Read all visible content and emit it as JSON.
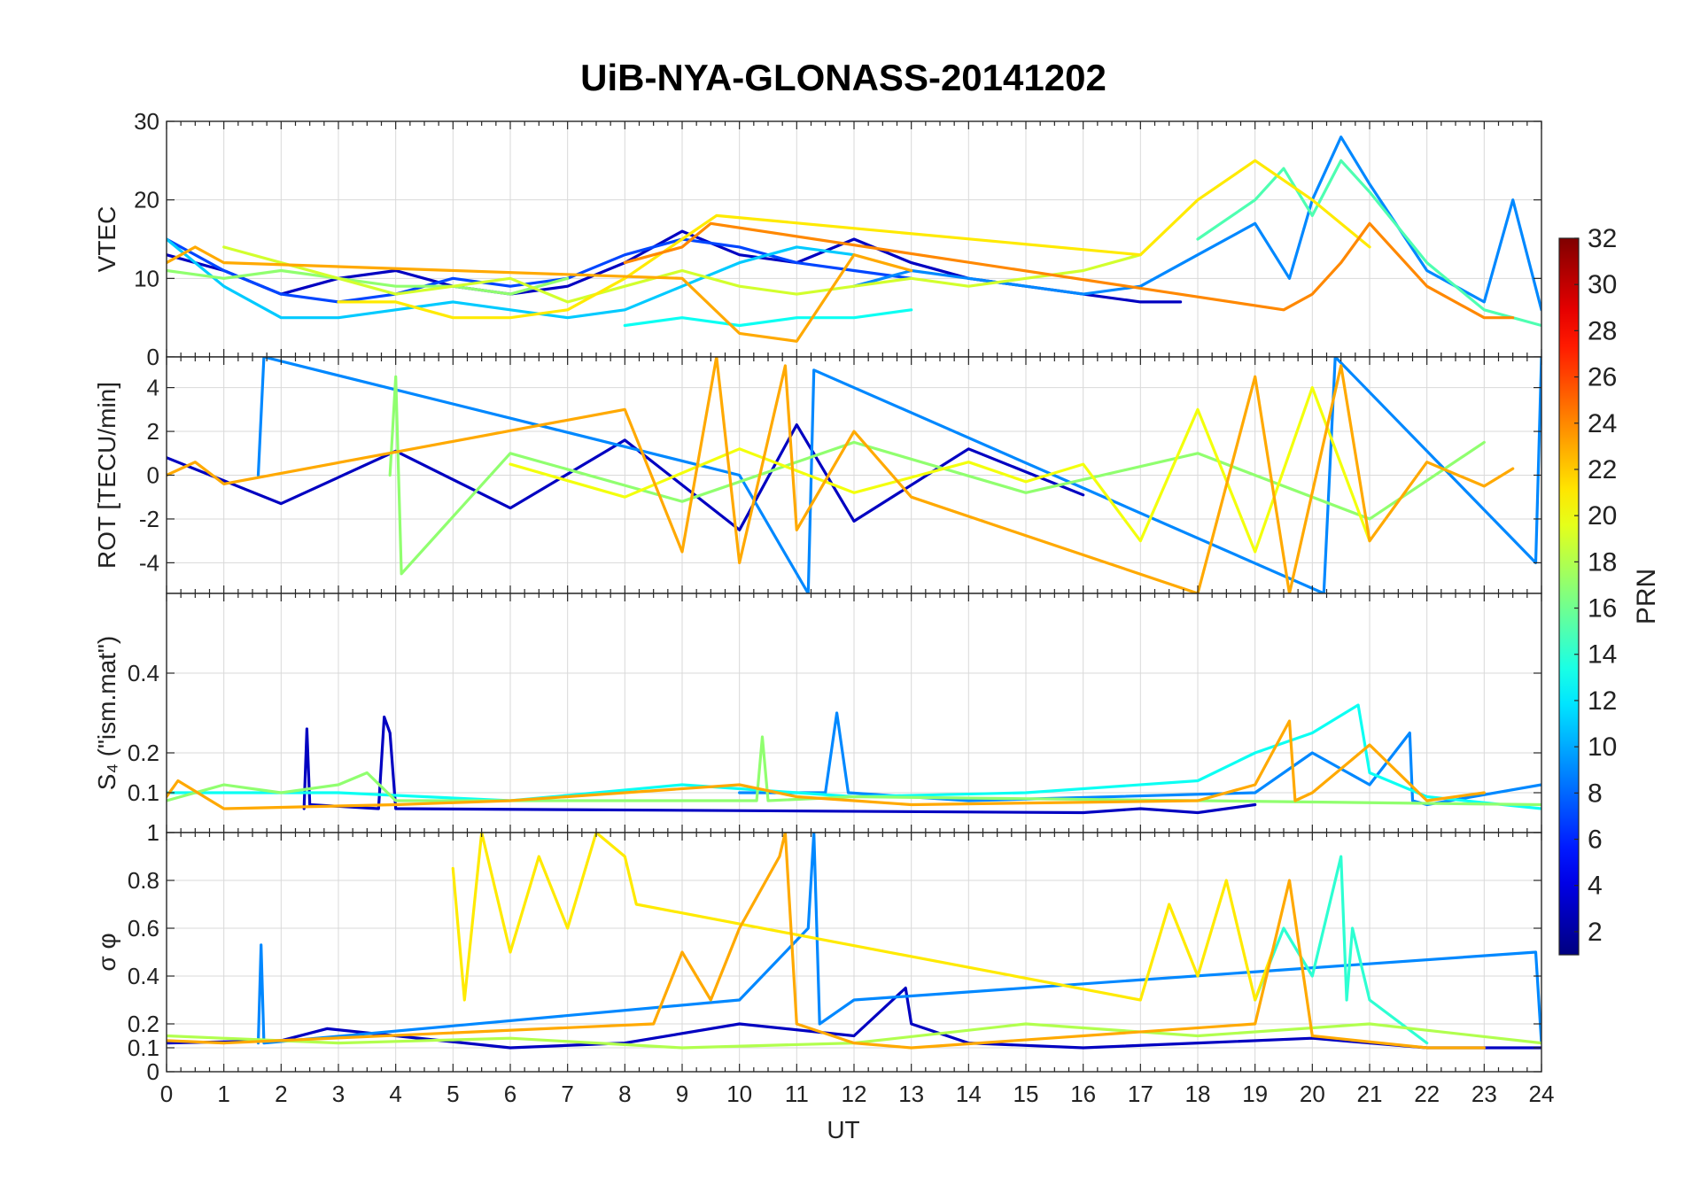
{
  "chart_data": {
    "type": "line",
    "title": "UiB-NYA-GLONASS-20141202",
    "xlabel": "UT",
    "xlim": [
      0,
      24
    ],
    "xticks": [
      "0",
      "1",
      "2",
      "3",
      "4",
      "5",
      "6",
      "7",
      "8",
      "9",
      "10",
      "11",
      "12",
      "13",
      "14",
      "15",
      "16",
      "17",
      "18",
      "19",
      "20",
      "21",
      "22",
      "23",
      "24"
    ],
    "colorbar": {
      "label": "PRN",
      "range": [
        1,
        32
      ],
      "colormap": "jet",
      "ticks": [
        "2",
        "4",
        "6",
        "8",
        "10",
        "12",
        "14",
        "16",
        "18",
        "20",
        "22",
        "24",
        "26",
        "28",
        "30",
        "32"
      ]
    },
    "panels": [
      {
        "id": "vtec",
        "ylabel": "VTEC",
        "ylim": [
          0,
          30
        ],
        "yticks": [
          "0",
          "10",
          "20",
          "30"
        ],
        "ytick_values": [
          0,
          10,
          20,
          30
        ],
        "series": [
          {
            "prn": 3,
            "x": [
              0,
              1,
              2,
              3,
              4,
              5,
              6,
              7,
              8,
              9,
              10,
              11,
              12,
              13,
              14,
              15,
              16,
              17,
              17.7
            ],
            "y": [
              13,
              11,
              8,
              10,
              11,
              9,
              8,
              9,
              12,
              16,
              13,
              12,
              15,
              12,
              10,
              9,
              8,
              7,
              7
            ]
          },
          {
            "prn": 7,
            "x": [
              0,
              1,
              2,
              3,
              4,
              5,
              6,
              7,
              8,
              9,
              10,
              11,
              12,
              13
            ],
            "y": [
              15,
              11,
              8,
              7,
              8,
              10,
              9,
              10,
              13,
              15,
              14,
              12,
              11,
              10
            ]
          },
          {
            "prn": 9,
            "x": [
              12,
              13,
              14,
              15,
              16,
              17,
              18,
              19,
              19.6,
              20,
              20.5,
              21,
              22,
              23,
              23.5,
              24
            ],
            "y": [
              9,
              11,
              10,
              9,
              8,
              9,
              13,
              17,
              10,
              20,
              28,
              22,
              11,
              7,
              20,
              6
            ]
          },
          {
            "prn": 11,
            "x": [
              0,
              1,
              2,
              3,
              4,
              5,
              6,
              7,
              8,
              9,
              10,
              11,
              12
            ],
            "y": [
              15,
              9,
              5,
              5,
              6,
              7,
              6,
              5,
              6,
              9,
              12,
              14,
              13
            ]
          },
          {
            "prn": 13,
            "x": [
              8,
              9,
              10,
              11,
              12,
              13
            ],
            "y": [
              4,
              5,
              4,
              5,
              5,
              6
            ]
          },
          {
            "prn": 15,
            "x": [
              18,
              19,
              19.5,
              20,
              20.5,
              21,
              22,
              23,
              24
            ],
            "y": [
              15,
              20,
              24,
              18,
              25,
              21,
              12,
              6,
              4
            ]
          },
          {
            "prn": 17,
            "x": [
              0,
              1,
              2,
              3,
              4,
              5,
              6,
              7
            ],
            "y": [
              11,
              10,
              11,
              10,
              9,
              9,
              8,
              10
            ]
          },
          {
            "prn": 19,
            "x": [
              1,
              2,
              3,
              4,
              5,
              6,
              7,
              8,
              9,
              10,
              11,
              12,
              13,
              14,
              15,
              16,
              17
            ],
            "y": [
              14,
              12,
              10,
              8,
              9,
              10,
              7,
              9,
              11,
              9,
              8,
              9,
              10,
              9,
              10,
              11,
              13
            ]
          },
          {
            "prn": 21,
            "x": [
              3,
              4,
              5,
              6,
              7,
              8,
              9,
              9.6,
              17,
              18,
              19,
              20,
              21
            ],
            "y": [
              7,
              7,
              5,
              5,
              6,
              10,
              15,
              18,
              13,
              20,
              25,
              20,
              14
            ]
          },
          {
            "prn": 23,
            "x": [
              0,
              0.5,
              1,
              9,
              10,
              11,
              12,
              13
            ],
            "y": [
              12,
              14,
              12,
              10,
              3,
              2,
              13,
              11
            ]
          },
          {
            "prn": 24,
            "x": [
              8,
              9,
              9.5,
              19.5,
              20,
              20.5,
              21,
              22,
              23,
              23.5
            ],
            "y": [
              12,
              14,
              17,
              6,
              8,
              12,
              17,
              9,
              5,
              5
            ]
          }
        ]
      },
      {
        "id": "rot",
        "ylabel": "ROT [TECU/min]",
        "ylim": [
          -5.4,
          5.4
        ],
        "yticks": [
          "-4",
          "-2",
          "0",
          "2",
          "4"
        ],
        "ytick_values": [
          -4,
          -2,
          0,
          2,
          4
        ],
        "series": [
          {
            "prn": 3,
            "x": [
              0,
              2,
              4,
              6,
              8,
              10,
              11,
              12,
              14,
              16
            ],
            "y": [
              0.8,
              -1.3,
              1.1,
              -1.5,
              1.6,
              -2.5,
              2.3,
              -2.1,
              1.2,
              -0.9
            ]
          },
          {
            "prn": 9,
            "x": [
              1.6,
              1.7,
              10,
              11.2,
              11.3,
              20.2,
              20.4,
              23.9,
              24
            ],
            "y": [
              0,
              5.4,
              0,
              -5.4,
              4.8,
              -5.4,
              5.4,
              -4,
              5.4
            ]
          },
          {
            "prn": 17,
            "x": [
              3.9,
              4,
              4.1,
              6,
              9,
              12,
              15,
              18,
              21,
              23
            ],
            "y": [
              0,
              4.5,
              -4.5,
              1,
              -1.2,
              1.5,
              -0.8,
              1,
              -2,
              1.5
            ]
          },
          {
            "prn": 20,
            "x": [
              6,
              8,
              10,
              12,
              14,
              15,
              16,
              17,
              18,
              19,
              20,
              21
            ],
            "y": [
              0.5,
              -1,
              1.2,
              -0.8,
              0.6,
              -0.3,
              0.5,
              -3,
              3,
              -3.5,
              4,
              -3
            ]
          },
          {
            "prn": 23,
            "x": [
              0,
              0.5,
              1,
              8,
              9,
              9.6,
              10,
              10.8,
              11,
              12,
              13,
              18,
              19,
              19.6,
              20.5,
              21,
              22,
              23,
              23.5
            ],
            "y": [
              0,
              0.6,
              -0.4,
              3,
              -3.5,
              5.4,
              -4,
              5,
              -2.5,
              2,
              -1,
              -5.4,
              4.5,
              -5.4,
              5,
              -3,
              0.6,
              -0.5,
              0.3
            ]
          }
        ]
      },
      {
        "id": "s4",
        "ylabel": "S₄ (\"ism.mat\")",
        "ylim": [
          0,
          0.6
        ],
        "yticks": [
          "0.1",
          "0.2",
          "0.4"
        ],
        "ytick_values": [
          0.1,
          0.2,
          0.4
        ],
        "series": [
          {
            "prn": 3,
            "x": [
              2.4,
              2.45,
              2.5,
              3.7,
              3.8,
              3.9,
              4,
              16,
              17,
              18,
              19
            ],
            "y": [
              0.06,
              0.26,
              0.07,
              0.06,
              0.29,
              0.25,
              0.06,
              0.05,
              0.06,
              0.05,
              0.07
            ]
          },
          {
            "prn": 9,
            "x": [
              10,
              11.5,
              11.7,
              11.9,
              14,
              19,
              20,
              21,
              21.7,
              21.75,
              22,
              24
            ],
            "y": [
              0.1,
              0.1,
              0.3,
              0.1,
              0.08,
              0.1,
              0.2,
              0.12,
              0.25,
              0.08,
              0.07,
              0.12
            ]
          },
          {
            "prn": 13,
            "x": [
              0,
              3,
              6,
              9,
              12,
              15,
              18,
              19,
              20,
              20.8,
              21,
              22,
              24
            ],
            "y": [
              0.1,
              0.1,
              0.08,
              0.12,
              0.09,
              0.1,
              0.13,
              0.2,
              0.25,
              0.32,
              0.15,
              0.09,
              0.06
            ]
          },
          {
            "prn": 17,
            "x": [
              0,
              1,
              2,
              3,
              3.5,
              4,
              10.3,
              10.4,
              10.5,
              12,
              24
            ],
            "y": [
              0.08,
              0.12,
              0.1,
              0.12,
              0.15,
              0.08,
              0.08,
              0.24,
              0.08,
              0.09,
              0.07
            ]
          },
          {
            "prn": 23,
            "x": [
              0,
              0.2,
              1,
              4,
              6,
              8,
              10,
              11,
              12,
              13,
              18,
              19,
              19.6,
              19.7,
              20,
              21,
              22,
              23
            ],
            "y": [
              0.09,
              0.13,
              0.06,
              0.07,
              0.08,
              0.1,
              0.12,
              0.09,
              0.08,
              0.07,
              0.08,
              0.12,
              0.28,
              0.08,
              0.1,
              0.22,
              0.08,
              0.1
            ]
          }
        ]
      },
      {
        "id": "sigma_phi",
        "ylabel": "σ φ",
        "ylim": [
          0,
          1
        ],
        "yticks": [
          "0",
          "0.1",
          "0.2",
          "0.4",
          "0.6",
          "0.8",
          "1"
        ],
        "ytick_values": [
          0,
          0.1,
          0.2,
          0.4,
          0.6,
          0.8,
          1
        ],
        "series": [
          {
            "prn": 3,
            "x": [
              0,
              2,
              2.8,
              4,
              6,
              8,
              10,
              12,
              12.9,
              13,
              14,
              16,
              18,
              20,
              22,
              24
            ],
            "y": [
              0.12,
              0.13,
              0.18,
              0.15,
              0.1,
              0.12,
              0.2,
              0.15,
              0.35,
              0.2,
              0.12,
              0.1,
              0.12,
              0.14,
              0.1,
              0.1
            ]
          },
          {
            "prn": 9,
            "x": [
              1.6,
              1.65,
              1.7,
              10,
              11.2,
              11.3,
              11.4,
              12,
              23.9,
              24
            ],
            "y": [
              0.12,
              0.53,
              0.12,
              0.3,
              0.6,
              1,
              0.2,
              0.3,
              0.5,
              0.12
            ]
          },
          {
            "prn": 14,
            "x": [
              19,
              19.5,
              20,
              20.5,
              20.6,
              20.7,
              21,
              22
            ],
            "y": [
              0.3,
              0.6,
              0.4,
              0.9,
              0.3,
              0.6,
              0.3,
              0.12
            ]
          },
          {
            "prn": 18,
            "x": [
              0,
              3,
              6,
              9,
              12,
              15,
              18,
              21,
              24
            ],
            "y": [
              0.15,
              0.12,
              0.14,
              0.1,
              0.12,
              0.2,
              0.15,
              0.2,
              0.12
            ]
          },
          {
            "prn": 21,
            "x": [
              5,
              5.2,
              5.5,
              6,
              6.5,
              7,
              7.5,
              8,
              8.2,
              17,
              17.5,
              18,
              18.5,
              19,
              19.3
            ],
            "y": [
              0.85,
              0.3,
              1,
              0.5,
              0.9,
              0.6,
              1,
              0.9,
              0.7,
              0.3,
              0.7,
              0.4,
              0.8,
              0.3,
              0.5
            ]
          },
          {
            "prn": 23,
            "x": [
              0,
              1,
              8.5,
              9,
              9.5,
              10,
              10.7,
              10.8,
              11,
              12,
              13,
              19,
              19.6,
              20,
              22,
              23
            ],
            "y": [
              0.13,
              0.12,
              0.2,
              0.5,
              0.3,
              0.6,
              0.9,
              1,
              0.2,
              0.12,
              0.1,
              0.2,
              0.8,
              0.15,
              0.1,
              0.1
            ]
          }
        ]
      }
    ]
  }
}
